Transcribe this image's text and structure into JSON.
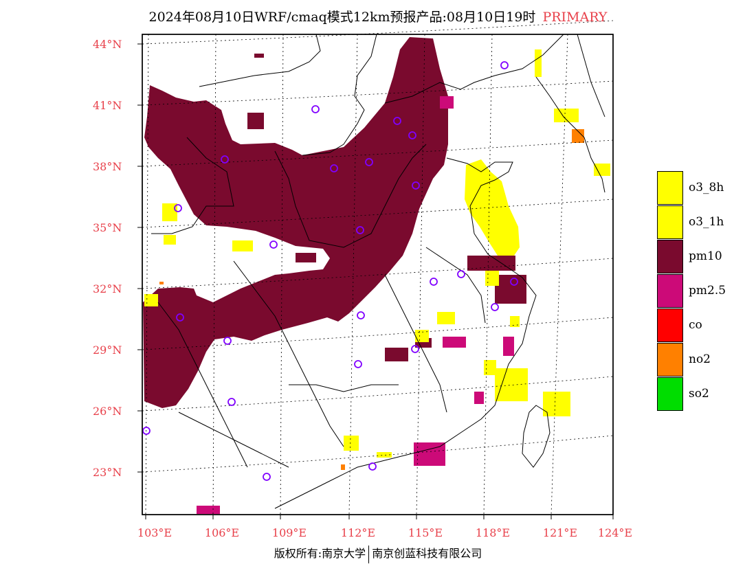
{
  "title": {
    "main": "2024年08月10日WRF/cmaq模式12km预报产品:08月10日19时",
    "tag": "PRIMARY"
  },
  "lat_labels": [
    "44°N",
    "41°N",
    "38°N",
    "35°N",
    "32°N",
    "29°N",
    "26°N",
    "23°N"
  ],
  "lon_labels": [
    "103°E",
    "106°E",
    "109°E",
    "112°E",
    "115°E",
    "118°E",
    "121°E",
    "124°E"
  ],
  "legend": [
    {
      "label": "o3_8h",
      "color": "#ffff00"
    },
    {
      "label": "o3_1h",
      "color": "#ffff00"
    },
    {
      "label": "pm10",
      "color": "#7a0a2e"
    },
    {
      "label": "pm2.5",
      "color": "#cc0a78"
    },
    {
      "label": "co",
      "color": "#ff0000"
    },
    {
      "label": "no2",
      "color": "#ff8000"
    },
    {
      "label": "so2",
      "color": "#00dd00"
    }
  ],
  "footer": {
    "left": "版权所有:南京大学",
    "right": "南京创蓝科技有限公司"
  },
  "colors": {
    "pm10": "#7a0a2e",
    "pm25": "#cc0a78",
    "o3": "#ffff00",
    "no2": "#ff8000",
    "station": "#8000ff",
    "label": "#e8404a"
  }
}
